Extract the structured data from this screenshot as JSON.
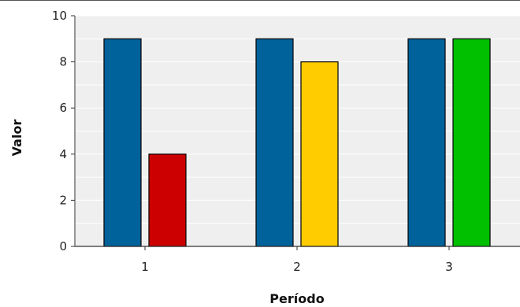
{
  "chart_data": {
    "type": "bar",
    "title": "",
    "xlabel": "Período",
    "ylabel": "Valor",
    "categories": [
      "1",
      "2",
      "3"
    ],
    "ylim": [
      0,
      10
    ],
    "yticks": [
      "0",
      "2",
      "4",
      "6",
      "8",
      "10"
    ],
    "grid": true,
    "legend": "none",
    "bars": [
      {
        "category": "1",
        "value": 9,
        "color": "#00629b"
      },
      {
        "category": "1",
        "value": 4,
        "color": "#cc0000"
      },
      {
        "category": "2",
        "value": 9,
        "color": "#00629b"
      },
      {
        "category": "2",
        "value": 8,
        "color": "#ffcc00"
      },
      {
        "category": "3",
        "value": 9,
        "color": "#00629b"
      },
      {
        "category": "3",
        "value": 9,
        "color": "#00c000"
      }
    ],
    "colors": {
      "plot_background": "#efefef",
      "gridline": "#ffffff",
      "bar_outline": "#000000"
    }
  }
}
